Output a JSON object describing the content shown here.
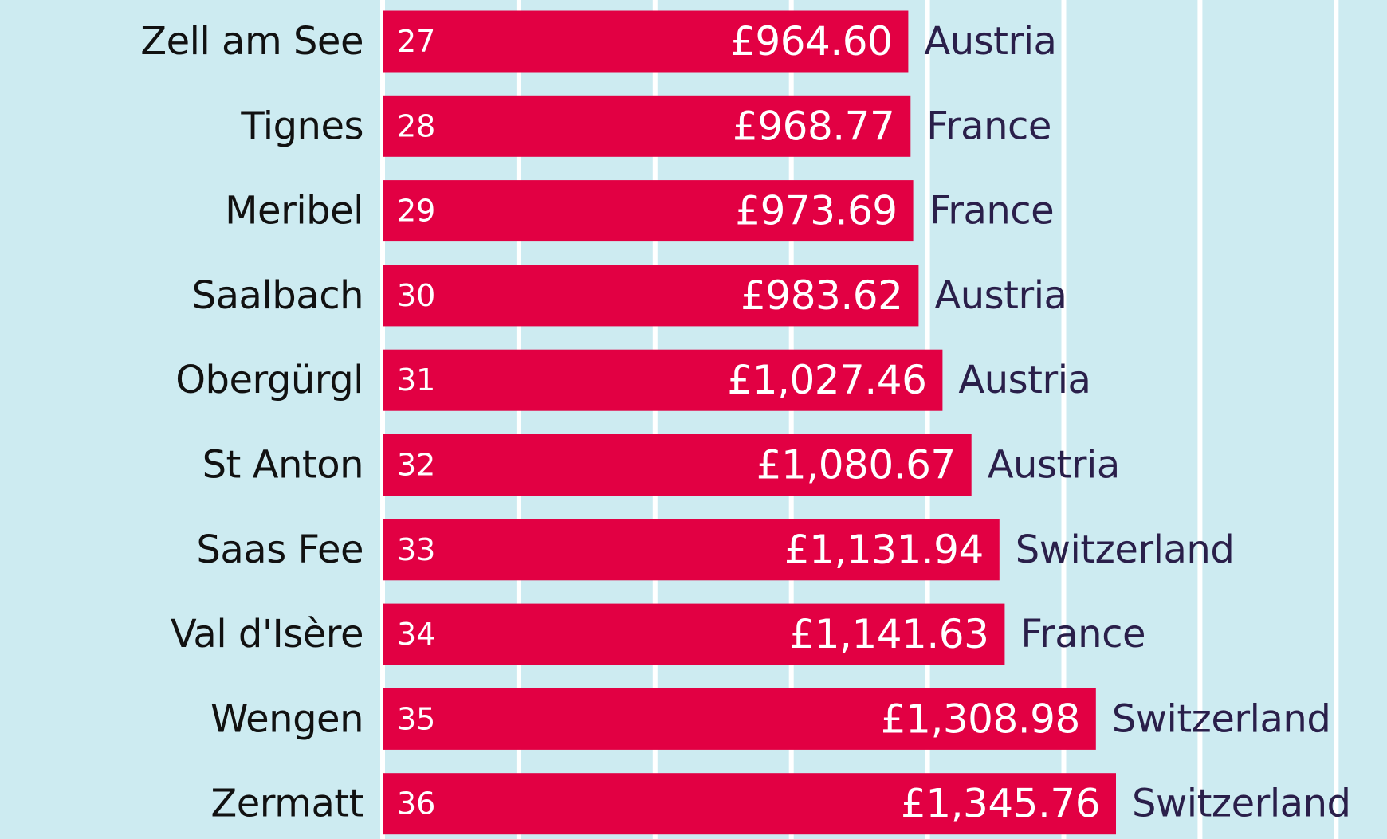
{
  "colors": {
    "background": "#cdebf1",
    "bar": "#e20043",
    "bar_text": "#ffffff",
    "resort_text": "#111111",
    "country_text": "#2a1f4a",
    "gridline": "#ffffff"
  },
  "chart_data": {
    "type": "bar",
    "orientation": "horizontal",
    "currency": "£",
    "categories": [
      "Zell am See",
      "Tignes",
      "Meribel",
      "Saalbach",
      "Obergürgl",
      "St Anton",
      "Saas Fee",
      "Val d'Isère",
      "Wengen",
      "Zermatt"
    ],
    "ranks": [
      "27",
      "28",
      "29",
      "30",
      "31",
      "32",
      "33",
      "34",
      "35",
      "36"
    ],
    "values": [
      964.6,
      968.77,
      973.69,
      983.62,
      1027.46,
      1080.67,
      1131.94,
      1141.63,
      1308.98,
      1345.76
    ],
    "value_labels": [
      "£964.60",
      "£968.77",
      "£973.69",
      "£983.62",
      "£1,027.46",
      "£1,080.67",
      "£1,131.94",
      "£1,141.63",
      "£1,308.98",
      "£1,345.76"
    ],
    "countries": [
      "Austria",
      "France",
      "France",
      "Austria",
      "Austria",
      "Austria",
      "Switzerland",
      "France",
      "Switzerland",
      "Switzerland"
    ],
    "xlim": [
      0,
      1800
    ],
    "grid_interval": 250,
    "grid": true,
    "legend": "none",
    "title": "",
    "xlabel": "",
    "ylabel": ""
  }
}
